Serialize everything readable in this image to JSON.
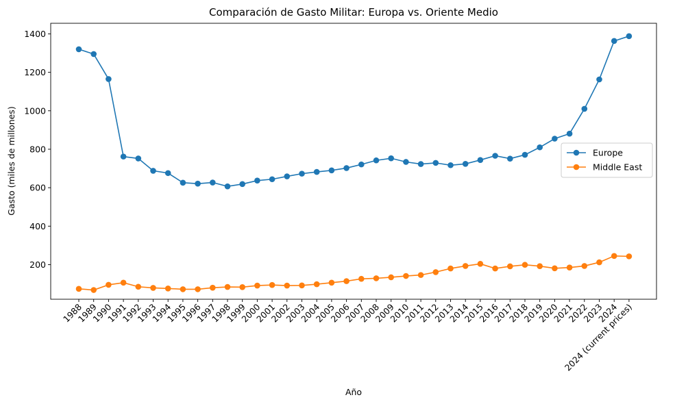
{
  "chart_data": {
    "type": "line",
    "title": "Comparación de Gasto Militar: Europa vs. Oriente Medio",
    "xlabel": "Año",
    "ylabel": "Gasto (miles de millones)",
    "categories": [
      "1988",
      "1989",
      "1990",
      "1991",
      "1992",
      "1993",
      "1994",
      "1995",
      "1996",
      "1997",
      "1998",
      "1999",
      "2000",
      "2001",
      "2002",
      "2003",
      "2004",
      "2005",
      "2006",
      "2007",
      "2008",
      "2009",
      "2010",
      "2011",
      "2012",
      "2013",
      "2014",
      "2015",
      "2016",
      "2017",
      "2018",
      "2019",
      "2020",
      "2021",
      "2022",
      "2023",
      "2024",
      "2024 (current prices)"
    ],
    "yticks": [
      200,
      400,
      600,
      800,
      1000,
      1200,
      1400
    ],
    "ylim": [
      20,
      1455
    ],
    "legend_position": "center-right",
    "grid": false,
    "series": [
      {
        "name": "Europe",
        "color": "#1f77b4",
        "values": [
          1320,
          1295,
          1165,
          762,
          752,
          688,
          676,
          626,
          621,
          627,
          607,
          619,
          637,
          644,
          659,
          673,
          682,
          690,
          702,
          721,
          742,
          753,
          734,
          723,
          729,
          717,
          724,
          744,
          766,
          751,
          771,
          810,
          855,
          881,
          1010,
          1163,
          1363,
          1388
        ]
      },
      {
        "name": "Middle East",
        "color": "#ff7f0e",
        "values": [
          74,
          68,
          95,
          106,
          85,
          79,
          76,
          72,
          72,
          80,
          84,
          83,
          91,
          94,
          91,
          92,
          98,
          106,
          114,
          126,
          129,
          134,
          141,
          146,
          161,
          180,
          193,
          204,
          180,
          191,
          199,
          192,
          181,
          185,
          193,
          212,
          245,
          243
        ]
      }
    ]
  }
}
